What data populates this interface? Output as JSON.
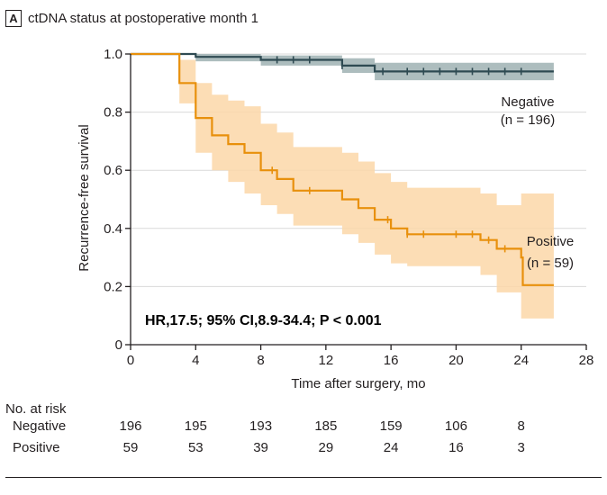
{
  "panel": {
    "letter": "A",
    "title": "ctDNA status at postoperative month 1"
  },
  "chart_data": {
    "type": "line",
    "title": "ctDNA status at postoperative month 1",
    "xlabel": "Time after surgery, mo",
    "ylabel": "Recurrence-free survival",
    "xlim": [
      0,
      28
    ],
    "ylim": [
      0,
      1.0
    ],
    "xticks": [
      0,
      4,
      8,
      12,
      16,
      20,
      24,
      28
    ],
    "yticks": [
      0,
      0.2,
      0.4,
      0.6,
      0.8,
      1.0
    ],
    "ytick_labels": [
      "0",
      "0.2",
      "0.4",
      "0.6",
      "0.8",
      "1.0"
    ],
    "grid": true,
    "annotation": "HR,17.5; 95% CI,8.9-34.4; P < 0.001",
    "series": [
      {
        "name": "Negative",
        "label_line1": "Negative",
        "label_line2": "(n = 196)",
        "color": "#2e4a52",
        "band_color": "#9fb1b3",
        "steps": [
          [
            0,
            1.0
          ],
          [
            4,
            0.99
          ],
          [
            8,
            0.98
          ],
          [
            13,
            0.96
          ],
          [
            15,
            0.94
          ],
          [
            26,
            0.94
          ]
        ],
        "ci_upper": [
          [
            0,
            1.0
          ],
          [
            4,
            1.0
          ],
          [
            8,
            0.995
          ],
          [
            13,
            0.985
          ],
          [
            15,
            0.97
          ],
          [
            26,
            0.97
          ]
        ],
        "ci_lower": [
          [
            0,
            1.0
          ],
          [
            4,
            0.975
          ],
          [
            8,
            0.96
          ],
          [
            13,
            0.935
          ],
          [
            15,
            0.91
          ],
          [
            26,
            0.91
          ]
        ],
        "censor_times": [
          9,
          10,
          11,
          13,
          15.5,
          17,
          18,
          19,
          20,
          21,
          22,
          23,
          24
        ]
      },
      {
        "name": "Positive",
        "label_line1": "Positive",
        "label_line2": "(n = 59)",
        "color": "#e8900c",
        "band_color": "#fcd7a8",
        "steps": [
          [
            0,
            1.0
          ],
          [
            3,
            0.9
          ],
          [
            4,
            0.78
          ],
          [
            5,
            0.72
          ],
          [
            6,
            0.69
          ],
          [
            7,
            0.66
          ],
          [
            8,
            0.6
          ],
          [
            9,
            0.57
          ],
          [
            10,
            0.53
          ],
          [
            13,
            0.5
          ],
          [
            14,
            0.47
          ],
          [
            15,
            0.43
          ],
          [
            16,
            0.4
          ],
          [
            17,
            0.38
          ],
          [
            21.5,
            0.36
          ],
          [
            22.5,
            0.33
          ],
          [
            24,
            0.3
          ],
          [
            24.1,
            0.205
          ],
          [
            26,
            0.205
          ]
        ],
        "ci_upper": [
          [
            0,
            1.0
          ],
          [
            3,
            0.98
          ],
          [
            4,
            0.9
          ],
          [
            5,
            0.86
          ],
          [
            6,
            0.84
          ],
          [
            7,
            0.82
          ],
          [
            8,
            0.76
          ],
          [
            9,
            0.73
          ],
          [
            10,
            0.68
          ],
          [
            13,
            0.66
          ],
          [
            14,
            0.63
          ],
          [
            15,
            0.59
          ],
          [
            16,
            0.56
          ],
          [
            17,
            0.54
          ],
          [
            21.5,
            0.52
          ],
          [
            22.5,
            0.48
          ],
          [
            24,
            0.52
          ],
          [
            26,
            0.52
          ]
        ],
        "ci_lower": [
          [
            0,
            1.0
          ],
          [
            3,
            0.83
          ],
          [
            4,
            0.66
          ],
          [
            5,
            0.6
          ],
          [
            6,
            0.56
          ],
          [
            7,
            0.52
          ],
          [
            8,
            0.48
          ],
          [
            9,
            0.45
          ],
          [
            10,
            0.41
          ],
          [
            13,
            0.38
          ],
          [
            14,
            0.35
          ],
          [
            15,
            0.31
          ],
          [
            16,
            0.28
          ],
          [
            17,
            0.27
          ],
          [
            21.5,
            0.24
          ],
          [
            22.5,
            0.18
          ],
          [
            24,
            0.09
          ],
          [
            26,
            0.09
          ]
        ],
        "censor_times": [
          8.7,
          11,
          15.8,
          17,
          18,
          20,
          21,
          22,
          23
        ]
      }
    ]
  },
  "risk_table": {
    "header": "No. at risk",
    "times": [
      0,
      4,
      8,
      12,
      16,
      20,
      24
    ],
    "rows": [
      {
        "label": "Negative",
        "values": [
          "196",
          "195",
          "193",
          "185",
          "159",
          "106",
          "8"
        ]
      },
      {
        "label": "Positive",
        "values": [
          "59",
          "53",
          "39",
          "29",
          "24",
          "16",
          "3"
        ]
      }
    ]
  }
}
